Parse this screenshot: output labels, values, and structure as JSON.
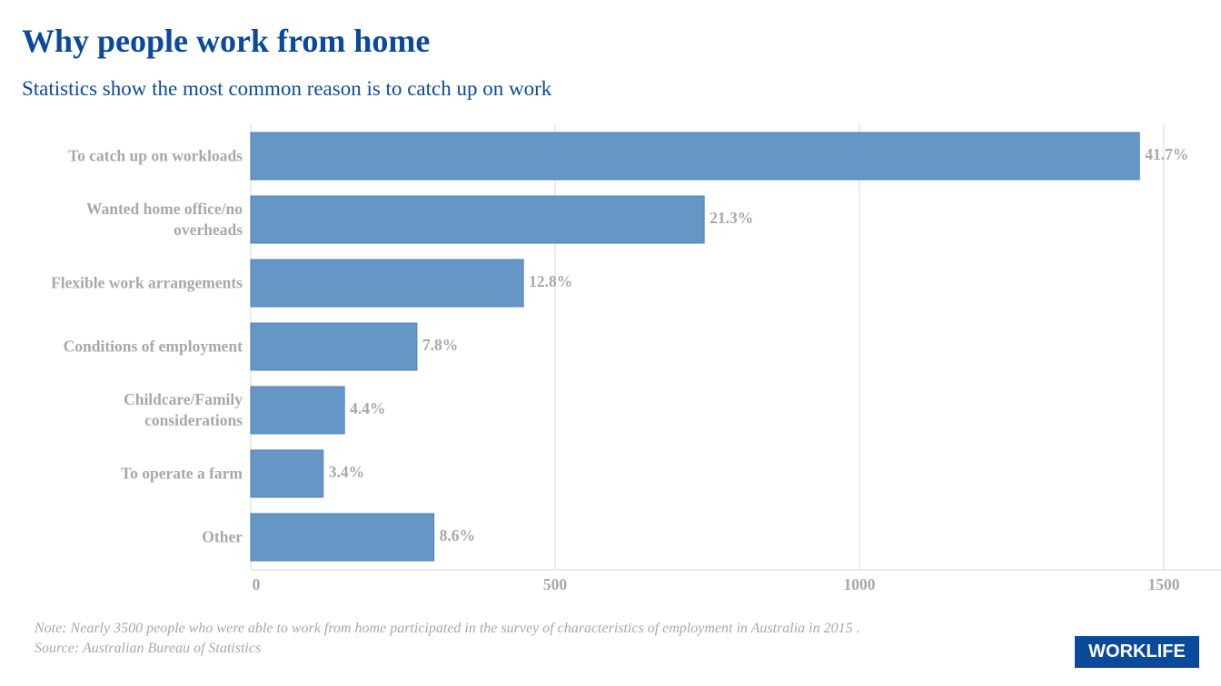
{
  "chart_data": {
    "type": "hbar",
    "title": "Why people work from home",
    "subtitle": "Statistics show the most common reason is to catch up on work",
    "categories": [
      "To catch up on workloads",
      "Wanted home office/no\noverheads",
      "Flexible work arrangements",
      "Conditions of employment",
      "Childcare/Family\nconsiderations",
      "To operate a farm",
      "Other"
    ],
    "values": [
      1460,
      745,
      448,
      273,
      154,
      119,
      301
    ],
    "value_labels": [
      "41.7%",
      "21.3%",
      "12.8%",
      "7.8%",
      "4.4%",
      "3.4%",
      "8.6%"
    ],
    "color": "#6497c6",
    "xlim": [
      0,
      1594
    ],
    "xticks": [
      0,
      500,
      1000,
      1500
    ],
    "grid": true,
    "note": "Note: Nearly 3500 people who were able to work from home participated in the survey of characteristics of employment in Australia in 2015 .",
    "source": "Source: Australian Bureau of Statistics",
    "logo": "WORKLIFE"
  }
}
